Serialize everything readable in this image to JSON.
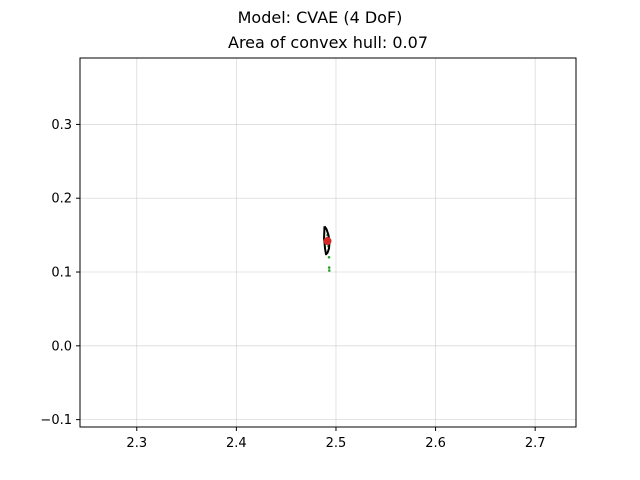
{
  "suptitle": "Model: CVAE (4 DoF)",
  "chart_data": {
    "type": "scatter",
    "title": "Area of convex hull: 0.07",
    "xlabel": "",
    "ylabel": "",
    "xlim": [
      2.243,
      2.741
    ],
    "ylim": [
      -0.11,
      0.39
    ],
    "grid": true,
    "xticks": [
      2.3,
      2.4,
      2.5,
      2.6,
      2.7
    ],
    "xtick_labels": [
      "2.3",
      "2.4",
      "2.5",
      "2.6",
      "2.7"
    ],
    "yticks": [
      -0.1,
      0.0,
      0.1,
      0.2,
      0.3
    ],
    "ytick_labels": [
      "−0.1",
      "0.0",
      "0.1",
      "0.2",
      "0.3"
    ],
    "series": [
      {
        "kind": "points",
        "color": "#2ca02c",
        "x": [
          2.4915,
          2.4905,
          2.492,
          2.4925,
          2.493,
          2.4932,
          2.4933
        ],
        "y": [
          0.15,
          0.145,
          0.138,
          0.135,
          0.12,
          0.106,
          0.102
        ]
      },
      {
        "kind": "hull",
        "color": "#000000",
        "x": [
          2.4885,
          2.4905,
          2.4925,
          2.4935,
          2.493,
          2.4915,
          2.49,
          2.489,
          2.4885,
          2.488,
          2.4885
        ],
        "y": [
          0.162,
          0.158,
          0.15,
          0.14,
          0.132,
          0.126,
          0.124,
          0.132,
          0.14,
          0.145,
          0.162
        ]
      },
      {
        "kind": "target",
        "color": "#d62728",
        "x": [
          2.4915
        ],
        "y": [
          0.142
        ]
      }
    ]
  }
}
